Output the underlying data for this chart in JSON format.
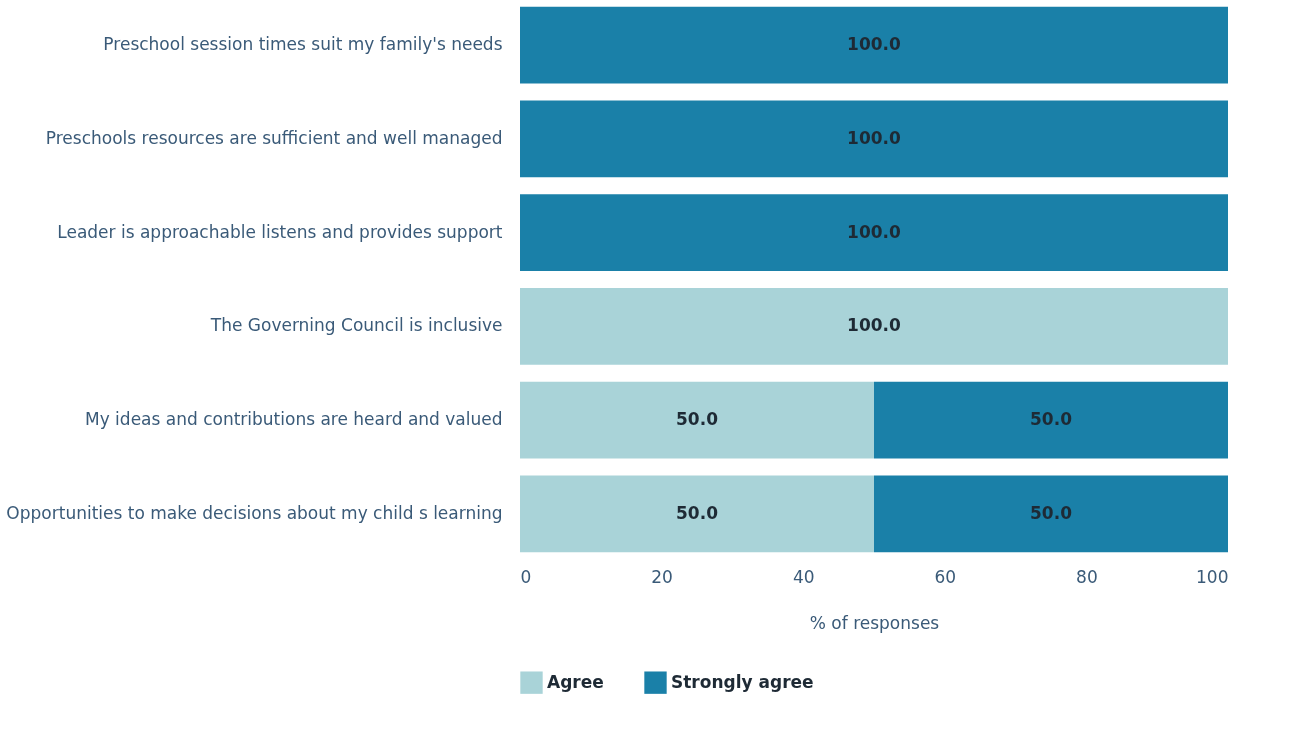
{
  "chart_data": {
    "type": "bar",
    "orientation": "horizontal",
    "stacked": true,
    "xlabel": "% of responses",
    "categories": [
      "Preschool session times suit my family's needs",
      "Preschools resources are sufficient and well managed",
      "Leader is approachable listens and provides support",
      "The Governing Council is inclusive",
      "My ideas and contributions are heard and valued",
      "Opportunities to make decisions about my child s learning"
    ],
    "series": [
      {
        "name": "Agree",
        "color": "#a9d3d8",
        "values": [
          0,
          0,
          0,
          100,
          50,
          50
        ],
        "value_labels": [
          null,
          null,
          null,
          "100.0",
          "50.0",
          "50.0"
        ]
      },
      {
        "name": "Strongly agree",
        "color": "#1a80a8",
        "values": [
          100,
          100,
          100,
          0,
          50,
          50
        ],
        "value_labels": [
          "100.0",
          "100.0",
          "100.0",
          null,
          "50.0",
          "50.0"
        ]
      }
    ],
    "xlim": [
      0,
      100
    ],
    "xticks": [
      0,
      20,
      40,
      60,
      80,
      100
    ],
    "grid": false,
    "legend": "bottom"
  }
}
